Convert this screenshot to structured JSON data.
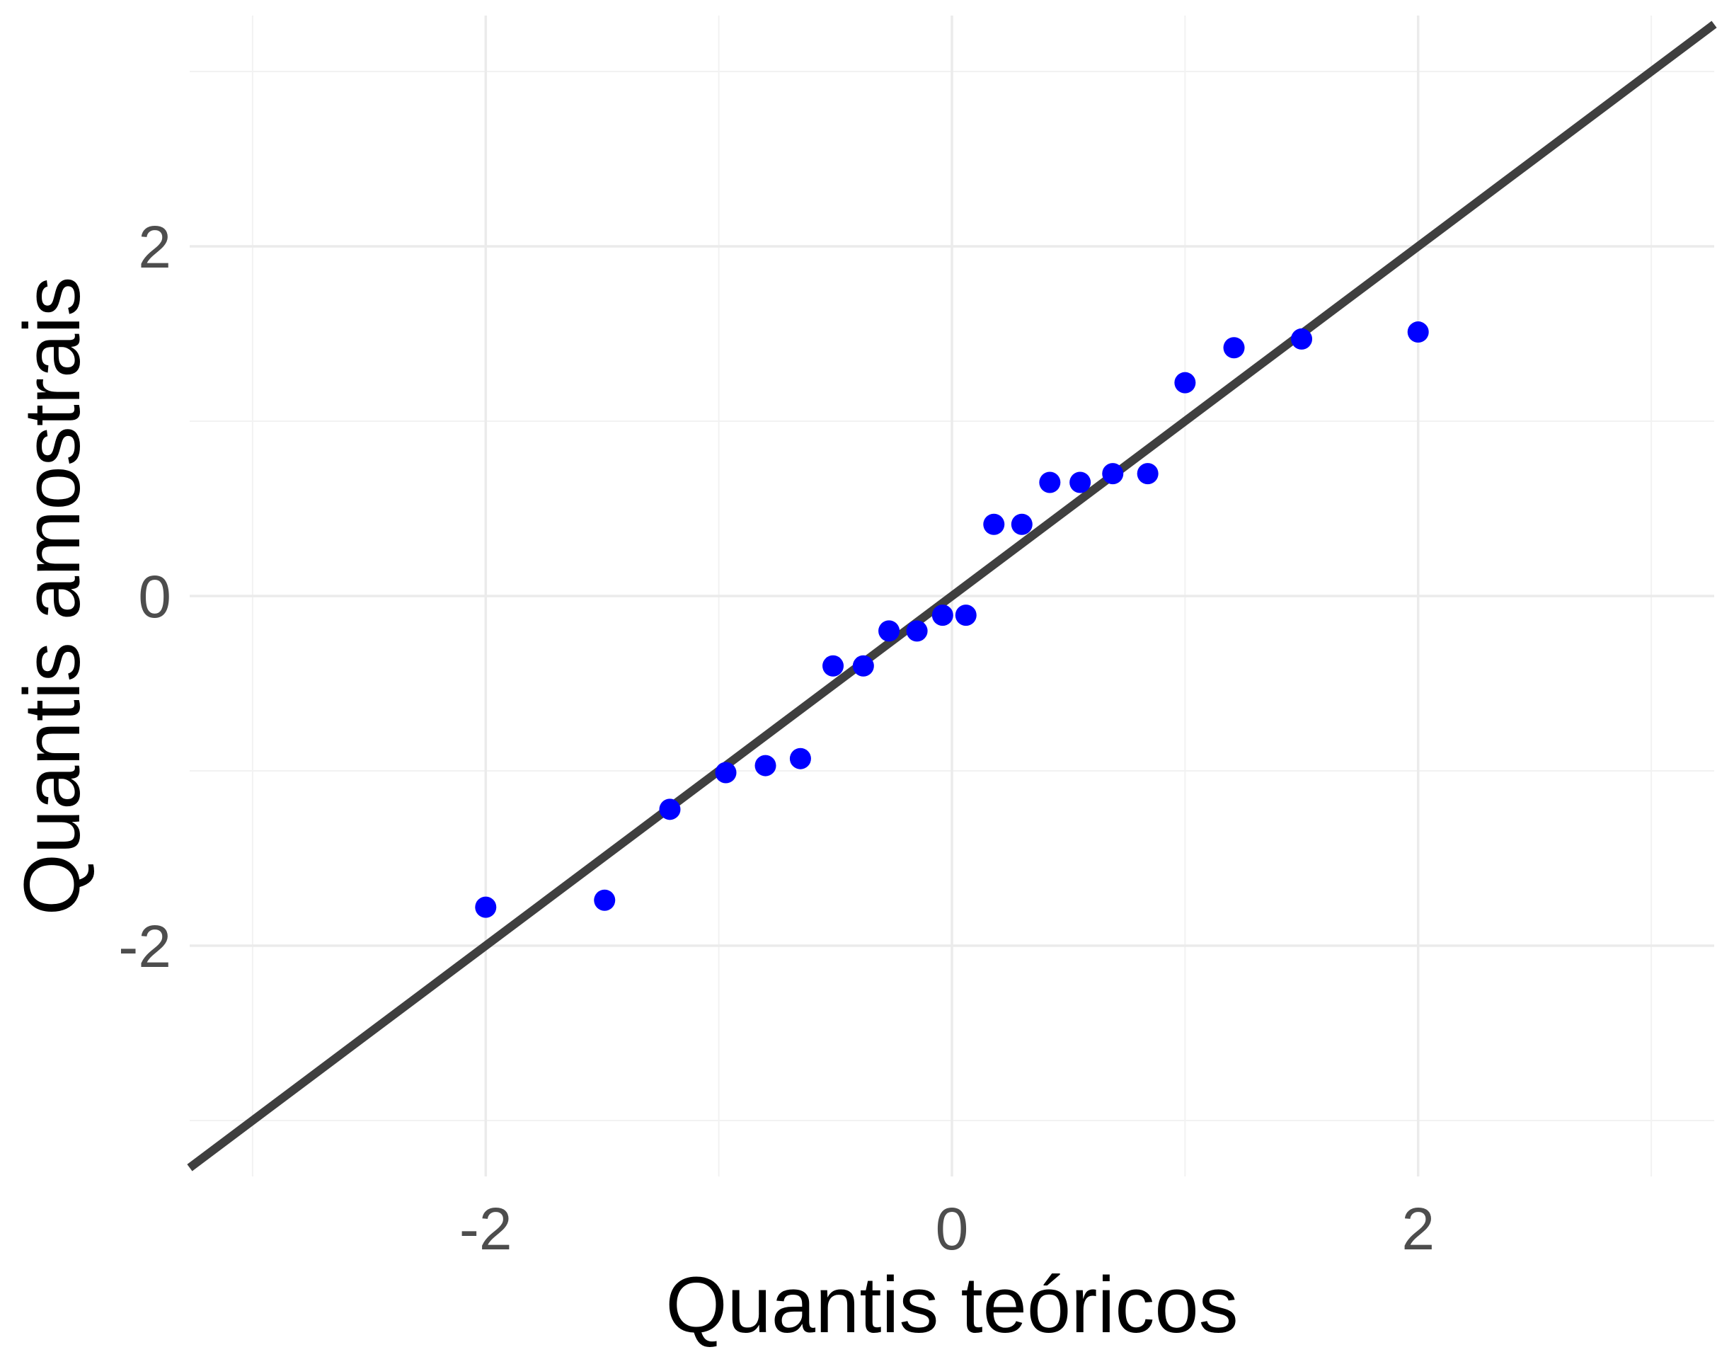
{
  "chart_data": {
    "type": "scatter",
    "xlabel": "Quantis teóricos",
    "ylabel": "Quantis amostrais",
    "xlim": [
      -3.27,
      3.27
    ],
    "ylim": [
      -3.32,
      3.32
    ],
    "x_ticks": [
      -2,
      0,
      2
    ],
    "x_tick_labels": [
      "-2",
      "0",
      "2"
    ],
    "y_ticks": [
      -2,
      0,
      2
    ],
    "y_tick_labels": [
      "-2",
      "0",
      "2"
    ],
    "grid": true,
    "legend": "none",
    "point_color": "#0000ff",
    "line_color": "#3f3f3f",
    "reference_line": {
      "intercept": 0,
      "slope": 1
    },
    "points": [
      {
        "x": -2.0,
        "y": -1.78
      },
      {
        "x": -1.49,
        "y": -1.74
      },
      {
        "x": -1.21,
        "y": -1.22
      },
      {
        "x": -0.97,
        "y": -1.01
      },
      {
        "x": -0.8,
        "y": -0.97
      },
      {
        "x": -0.65,
        "y": -0.93
      },
      {
        "x": -0.51,
        "y": -0.4
      },
      {
        "x": -0.38,
        "y": -0.4
      },
      {
        "x": -0.27,
        "y": -0.2
      },
      {
        "x": -0.15,
        "y": -0.2
      },
      {
        "x": -0.04,
        "y": -0.11
      },
      {
        "x": 0.06,
        "y": -0.11
      },
      {
        "x": 0.18,
        "y": 0.41
      },
      {
        "x": 0.3,
        "y": 0.41
      },
      {
        "x": 0.42,
        "y": 0.65
      },
      {
        "x": 0.55,
        "y": 0.65
      },
      {
        "x": 0.69,
        "y": 0.7
      },
      {
        "x": 0.84,
        "y": 0.7
      },
      {
        "x": 1.0,
        "y": 1.22
      },
      {
        "x": 1.21,
        "y": 1.42
      },
      {
        "x": 1.5,
        "y": 1.47
      },
      {
        "x": 2.0,
        "y": 1.51
      }
    ]
  }
}
